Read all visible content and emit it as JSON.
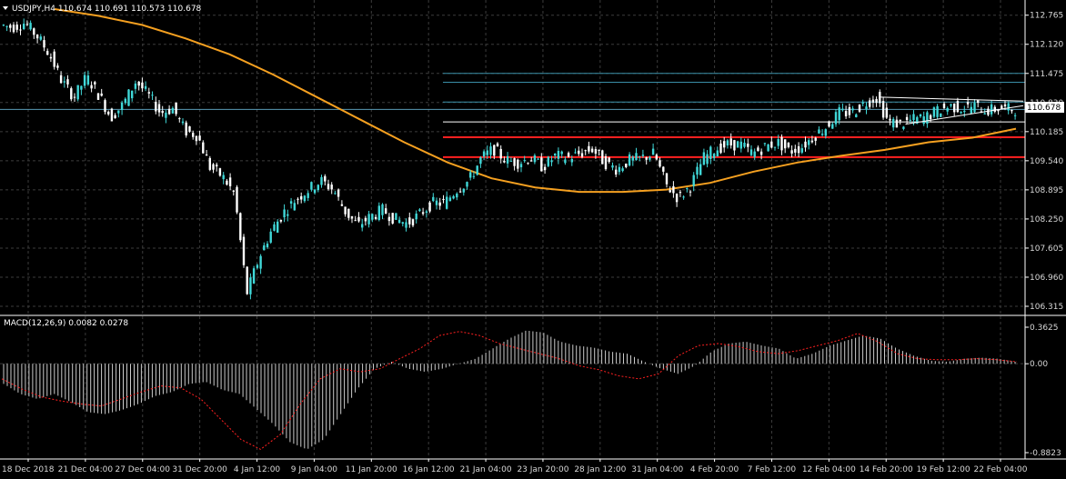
{
  "chart_data": [
    {
      "type": "candlestick",
      "title": "USDJPY,H4  110.674 110.691 110.573 110.678",
      "current_price": "110.678",
      "ylim": [
        106.315,
        112.9
      ],
      "y_ticks": [
        "112.765",
        "112.120",
        "111.475",
        "110.830",
        "110.185",
        "109.540",
        "108.895",
        "108.250",
        "107.605",
        "106.960",
        "106.315"
      ],
      "x_ticks": [
        "18 Dec 2018",
        "21 Dec 04:00",
        "27 Dec 04:00",
        "31 Dec 20:00",
        "4 Jan 12:00",
        "9 Jan 04:00",
        "11 Jan 20:00",
        "16 Jan 12:00",
        "21 Jan 04:00",
        "23 Jan 20:00",
        "28 Jan 12:00",
        "31 Jan 04:00",
        "4 Feb 20:00",
        "7 Feb 12:00",
        "12 Feb 04:00",
        "14 Feb 20:00",
        "19 Feb 12:00",
        "22 Feb 04:00"
      ],
      "close_path": [
        112.55,
        112.5,
        112.6,
        112.3,
        111.9,
        111.3,
        110.95,
        111.4,
        111.0,
        110.5,
        110.8,
        111.3,
        111.0,
        110.6,
        110.7,
        110.2,
        110.1,
        109.4,
        109.2,
        108.8,
        106.6,
        107.4,
        108.0,
        108.4,
        108.7,
        108.9,
        109.1,
        108.9,
        108.4,
        108.1,
        108.3,
        108.45,
        108.25,
        108.15,
        108.35,
        108.6,
        108.6,
        108.9,
        109.1,
        109.6,
        109.8,
        109.55,
        109.5,
        109.6,
        109.4,
        109.65,
        109.6,
        109.7,
        109.8,
        109.5,
        109.35,
        109.55,
        109.6,
        109.7,
        109.0,
        108.7,
        109.0,
        109.6,
        109.8,
        109.9,
        109.9,
        109.7,
        109.85,
        109.95,
        109.75,
        109.85,
        110.1,
        110.3,
        110.6,
        110.6,
        110.8,
        110.95,
        110.4,
        110.35,
        110.45,
        110.5,
        110.65,
        110.75,
        110.7,
        110.75,
        110.65,
        110.7,
        110.68
      ],
      "moving_average": [
        112.9,
        112.75,
        112.55,
        112.25,
        111.9,
        111.45,
        110.95,
        110.45,
        109.95,
        109.5,
        109.15,
        108.95,
        108.85,
        108.85,
        108.9,
        109.05,
        109.3,
        109.5,
        109.65,
        109.78,
        109.95,
        110.05,
        110.25
      ],
      "horizontal_lines": [
        {
          "name": "resistance-1",
          "price": 111.475,
          "color": "#3a8fa8"
        },
        {
          "name": "resistance-2",
          "price": 111.28,
          "color": "#3a8fa8"
        },
        {
          "name": "resistance-3",
          "price": 110.84,
          "color": "#3a8fa8"
        },
        {
          "name": "support-white",
          "price": 110.4,
          "color": "#ffffff"
        },
        {
          "name": "level-red-upper",
          "price": 110.06,
          "color": "#ff2020"
        },
        {
          "name": "level-red-lower",
          "price": 109.62,
          "color": "#ff2020"
        }
      ],
      "colors": {
        "bull": "#40d8d8",
        "bear": "#ffffff",
        "ma": "#f5a020",
        "price_line": "#5a9ab5",
        "grid": "#3c3c3c"
      }
    },
    {
      "type": "histogram",
      "title": "MACD(12,26,9) 0.0082 0.0278",
      "ylim": [
        -0.8823,
        0.3625
      ],
      "y_ticks": [
        "0.3625",
        "0.00",
        "-0.8823"
      ],
      "histogram": [
        -0.2,
        -0.3,
        -0.35,
        -0.3,
        -0.38,
        -0.48,
        -0.5,
        -0.46,
        -0.4,
        -0.32,
        -0.28,
        -0.2,
        -0.18,
        -0.26,
        -0.3,
        -0.45,
        -0.6,
        -0.78,
        -0.85,
        -0.75,
        -0.5,
        -0.25,
        -0.05,
        0.02,
        -0.05,
        -0.08,
        -0.05,
        0.0,
        0.05,
        0.15,
        0.25,
        0.33,
        0.31,
        0.22,
        0.18,
        0.16,
        0.12,
        0.1,
        0.02,
        -0.05,
        -0.1,
        -0.02,
        0.12,
        0.2,
        0.22,
        0.18,
        0.15,
        0.05,
        0.1,
        0.18,
        0.23,
        0.28,
        0.25,
        0.15,
        0.08,
        0.03,
        0.02,
        0.05,
        0.06,
        0.05,
        0.02
      ],
      "signal": [
        -0.15,
        -0.25,
        -0.33,
        -0.37,
        -0.4,
        -0.42,
        -0.35,
        -0.28,
        -0.22,
        -0.24,
        -0.35,
        -0.55,
        -0.75,
        -0.85,
        -0.7,
        -0.4,
        -0.15,
        -0.05,
        -0.08,
        -0.05,
        0.05,
        0.15,
        0.28,
        0.32,
        0.28,
        0.2,
        0.15,
        0.1,
        0.05,
        -0.02,
        -0.06,
        -0.12,
        -0.15,
        -0.1,
        0.08,
        0.18,
        0.2,
        0.17,
        0.12,
        0.1,
        0.13,
        0.18,
        0.23,
        0.3,
        0.22,
        0.1,
        0.05,
        0.04,
        0.04,
        0.05,
        0.04,
        0.02
      ],
      "colors": {
        "bars": "#cccccc",
        "signal": "#ff2020"
      }
    }
  ]
}
